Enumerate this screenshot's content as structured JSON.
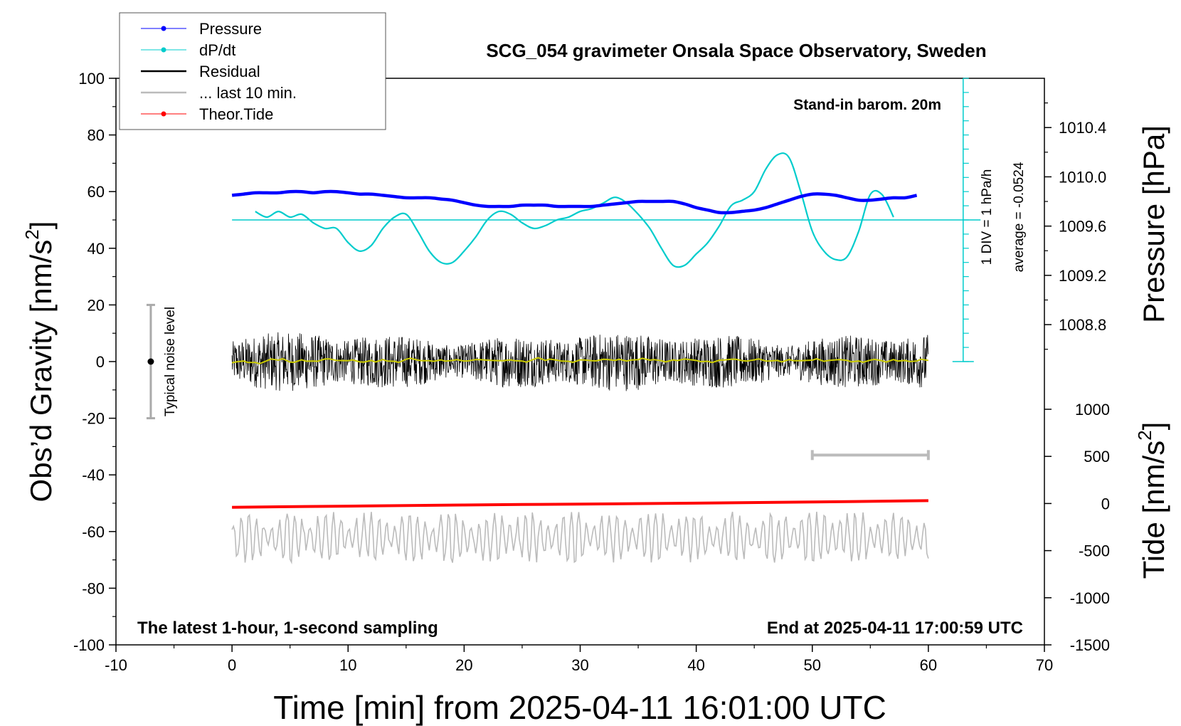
{
  "chart_data": {
    "type": "line",
    "title": "SCG_054 gravimeter Onsala Space Observatory, Sweden",
    "xlabel": "Time [min] from 2025-04-11 16:01:00 UTC",
    "ylabel_left": "Obs’d Gravity [nm/s²]",
    "ylabel_left_prefix": "Obs’d Gravity [nm/s",
    "ylabel_right_pressure": "Pressure [hPa]",
    "ylabel_right_tide_prefix": "Tide [nm/s",
    "unit_superscript": "2",
    "unit_close": "]",
    "xlim": [
      -10,
      70
    ],
    "ylim_left": [
      -100,
      100
    ],
    "pressure_range_hpa": [
      1008.5,
      1010.8
    ],
    "tide_range": [
      -1500,
      1000
    ],
    "x_ticks": [
      "-10",
      "0",
      "10",
      "20",
      "30",
      "40",
      "50",
      "60",
      "70"
    ],
    "y_ticks_left": [
      "100",
      "80",
      "60",
      "40",
      "20",
      "0",
      "-20",
      "-40",
      "-60",
      "-80",
      "-100"
    ],
    "pressure_ticks": [
      "1010.4",
      "1010.0",
      "1009.6",
      "1009.2",
      "1008.8"
    ],
    "tide_ticks": [
      "1000",
      "500",
      "0",
      "-500",
      "-1000",
      "-1500"
    ],
    "legend": [
      {
        "label": "Pressure",
        "color": "#0000ff",
        "marker": true
      },
      {
        "label": "dP/dt",
        "color": "#00cccc",
        "marker": true
      },
      {
        "label": "Residual",
        "color": "#000000",
        "marker": false
      },
      {
        "label": "... last 10 min.",
        "color": "#bbbbbb",
        "marker": false
      },
      {
        "label": "Theor.Tide",
        "color": "#ff0000",
        "marker": true
      }
    ],
    "annotations": {
      "barometer": "Stand-in barom. 20m",
      "div_note": "1 DIV = 1 hPa/h",
      "average": "average = -0.0524",
      "noise": "Typical noise level",
      "bottom_left": "The latest 1-hour, 1-second sampling",
      "bottom_right": "End at 2025-04-11 17:00:59 UTC"
    },
    "noise_bar": {
      "x": -7,
      "center": 0,
      "range": [
        -20,
        20
      ]
    },
    "last10_bar": {
      "x_start": 50,
      "x_end": 60,
      "plot_y": -33
    },
    "dpdt_scale": {
      "x": 63,
      "zero_plot_y": 50,
      "top_plot_y": 100,
      "bottom_plot_y": 0,
      "tick_step": 5
    },
    "series": [
      {
        "name": "Pressure",
        "axis": "pressure_hpa",
        "color": "#0000ff",
        "x": [
          0,
          1,
          2,
          3,
          4,
          5,
          6,
          7,
          8,
          9,
          10,
          11,
          12,
          13,
          14,
          15,
          16,
          17,
          18,
          19,
          20,
          21,
          22,
          23,
          24,
          25,
          26,
          27,
          28,
          29,
          30,
          31,
          32,
          33,
          34,
          35,
          36,
          37,
          38,
          39,
          40,
          41,
          42,
          43,
          44,
          45,
          46,
          47,
          48,
          49,
          50,
          51,
          52,
          53,
          54,
          55,
          56,
          57,
          58,
          59
        ],
        "values": [
          1009.85,
          1009.86,
          1009.87,
          1009.87,
          1009.87,
          1009.88,
          1009.88,
          1009.87,
          1009.88,
          1009.88,
          1009.87,
          1009.86,
          1009.86,
          1009.85,
          1009.84,
          1009.83,
          1009.83,
          1009.83,
          1009.82,
          1009.81,
          1009.79,
          1009.77,
          1009.76,
          1009.76,
          1009.76,
          1009.77,
          1009.77,
          1009.77,
          1009.76,
          1009.76,
          1009.76,
          1009.76,
          1009.77,
          1009.78,
          1009.79,
          1009.8,
          1009.8,
          1009.8,
          1009.8,
          1009.78,
          1009.75,
          1009.73,
          1009.71,
          1009.71,
          1009.72,
          1009.73,
          1009.75,
          1009.78,
          1009.81,
          1009.84,
          1009.86,
          1009.86,
          1009.85,
          1009.83,
          1009.81,
          1009.81,
          1009.82,
          1009.83,
          1009.83,
          1009.85
        ]
      },
      {
        "name": "dP/dt",
        "axis": "left_plot",
        "color": "#00cccc",
        "x": [
          2,
          3,
          4,
          5,
          6,
          7,
          8,
          9,
          10,
          11,
          12,
          13,
          14,
          15,
          16,
          17,
          18,
          19,
          20,
          21,
          22,
          23,
          24,
          25,
          26,
          27,
          28,
          29,
          30,
          31,
          32,
          33,
          34,
          35,
          36,
          37,
          38,
          39,
          40,
          41,
          42,
          43,
          44,
          45,
          46,
          47,
          48,
          49,
          50,
          51,
          52,
          53,
          54,
          55,
          56,
          57
        ],
        "values": [
          53,
          51,
          53,
          51,
          52,
          49,
          47,
          47,
          42,
          39,
          41,
          47,
          51,
          52,
          46,
          39,
          35,
          35,
          39,
          44,
          50,
          53,
          52,
          49,
          47,
          48,
          50,
          51,
          53,
          54,
          56,
          58,
          56,
          52,
          47,
          40,
          34,
          34,
          38,
          42,
          48,
          55,
          57,
          60,
          68,
          73,
          72,
          60,
          46,
          39,
          36,
          37,
          46,
          59,
          59,
          51
        ]
      },
      {
        "name": "Residual",
        "axis": "left",
        "color": "#000000",
        "x_range": [
          0,
          60
        ],
        "description": "1-second residual, amplitude approx. +/-10 nm/s2 around 0",
        "smoothed_values": [
          -0.4,
          0.2,
          -0.3,
          0.3,
          0.5,
          -0.2,
          0.6,
          0.2,
          0.9,
          0.4,
          0.3,
          -0.1,
          0.4,
          0.7,
          0.1,
          0.8,
          0.5,
          0.3,
          0.6,
          0.4,
          0.2,
          0.7,
          0.5,
          0.3,
          0.6,
          0.2,
          0.8,
          0.4,
          0.5,
          0.1,
          0.6,
          0.3,
          0.8,
          0.4,
          0.2,
          0.7,
          0.5,
          0.3,
          0.6,
          0.9,
          0.4,
          0.1,
          0.5,
          0.8,
          0.3,
          0.6,
          0.2,
          0.4,
          0.7,
          0.3,
          0.5,
          0.1,
          0.6,
          0.4,
          0.2,
          0.5,
          0.3,
          0.7,
          0.4,
          0.2,
          0.4
        ]
      },
      {
        "name": "... last 10 min.",
        "axis": "left",
        "color": "#bbbbbb",
        "x_range": [
          0,
          60
        ],
        "description": "residual of last 10 min, offset to approx. -62 nm/s2, amplitude approx. +/-8"
      },
      {
        "name": "Theor.Tide",
        "axis": "tide",
        "color": "#ff0000",
        "x": [
          0,
          10,
          20,
          30,
          40,
          50,
          60
        ],
        "values": [
          -40,
          -28,
          -16,
          -6,
          4,
          16,
          30
        ]
      }
    ]
  }
}
